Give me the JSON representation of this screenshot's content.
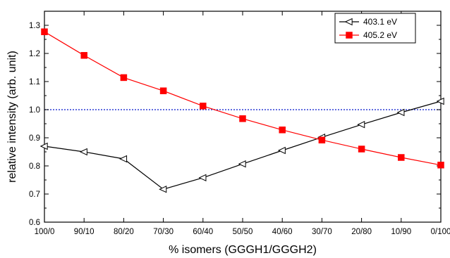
{
  "chart_data": {
    "type": "line",
    "title": "",
    "xlabel": "% isomers (GGGH1/GGGH2)",
    "ylabel": "relative intensity (arb. unit)",
    "categories": [
      "100/0",
      "90/10",
      "80/20",
      "70/30",
      "60/40",
      "50/50",
      "40/60",
      "30/70",
      "20/80",
      "10/90",
      "0/100"
    ],
    "ylim": [
      0.6,
      1.35
    ],
    "yticks": [
      "0.6",
      "0.7",
      "0.8",
      "0.9",
      "1.0",
      "1.1",
      "1.2",
      "1.3"
    ],
    "grid": false,
    "reference_line": {
      "y": 1.0,
      "style": "dotted",
      "color": "#2b3bd6"
    },
    "legend": {
      "placement": "top-right"
    },
    "series": [
      {
        "name": "403.1 eV",
        "color": "#000000",
        "marker": "open-left-triangle",
        "values": [
          0.87,
          0.85,
          0.825,
          0.717,
          0.758,
          0.807,
          0.855,
          0.902,
          0.947,
          0.99,
          1.03
        ]
      },
      {
        "name": "405.2 eV",
        "color": "#ff0000",
        "marker": "filled-square",
        "values": [
          1.277,
          1.193,
          1.114,
          1.067,
          1.013,
          0.968,
          0.928,
          0.892,
          0.86,
          0.83,
          0.803
        ]
      }
    ]
  }
}
